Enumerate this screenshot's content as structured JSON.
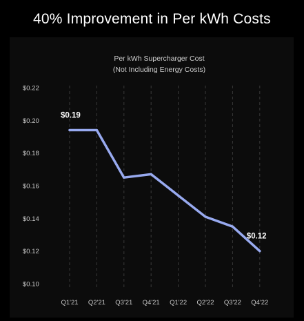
{
  "page": {
    "title": "40% Improvement in Per kWh Costs"
  },
  "colors": {
    "background": "#000000",
    "panel": "#0c0c0c",
    "line": "#98aaf0",
    "gridline": "#3a3a3a",
    "text": "#ffffff"
  },
  "chart_data": {
    "type": "line",
    "title": "Per kWh Supercharger Cost",
    "subtitle": "(Not Including Energy Costs)",
    "categories": [
      "Q1'21",
      "Q2'21",
      "Q3'21",
      "Q4'21",
      "Q1'22",
      "Q2'22",
      "Q3'22",
      "Q4'22"
    ],
    "series": [
      {
        "values": [
          0.194,
          0.194,
          0.165,
          0.167,
          0.154,
          0.141,
          0.135,
          0.12
        ]
      }
    ],
    "y_ticks": [
      "$0.22",
      "$0.20",
      "$0.18",
      "$0.16",
      "$0.14",
      "$0.12",
      "$0.10"
    ],
    "ylim": [
      0.1,
      0.22
    ],
    "grid": "vertical dashed",
    "annotations": [
      {
        "label": "$0.19",
        "index": 0
      },
      {
        "label": "$0.12",
        "index": 7
      }
    ]
  }
}
